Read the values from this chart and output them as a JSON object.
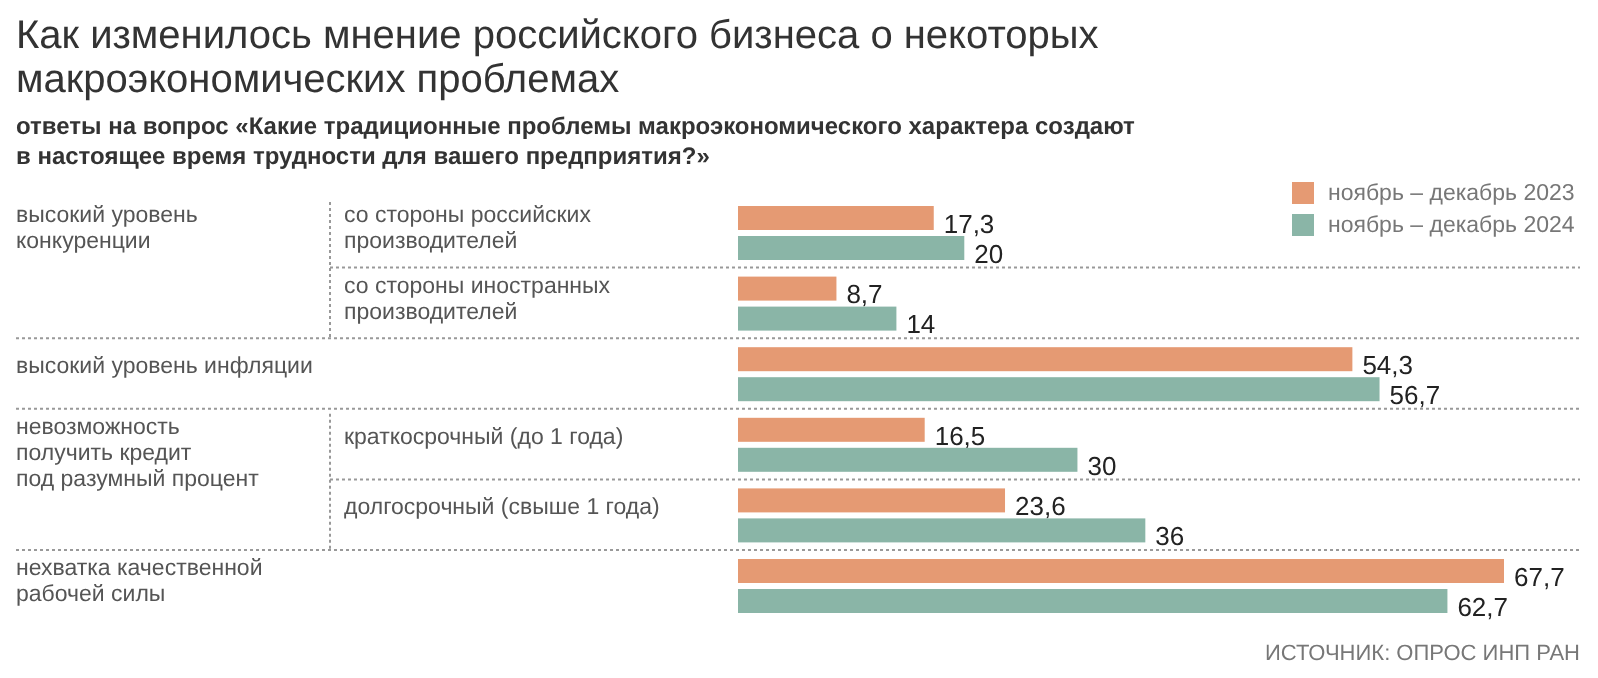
{
  "chart_data": {
    "type": "bar",
    "orientation": "horizontal",
    "title": "Как изменилось мнение российского бизнеса о некоторых\nмакроэкономических проблемах",
    "subtitle": "ответы на вопрос «Какие традиционные проблемы макроэкономического характера создают\nв настоящее время трудности для вашего предприятия?»",
    "categories": [
      "со стороны российских\nпроизводителей",
      "со стороны иностранных\nпроизводителей",
      null,
      "краткосрочный (до 1 года)",
      "долгосрочный (свыше 1 года)",
      null
    ],
    "series": [
      {
        "name": "ноябрь – декабрь 2023",
        "color": "#e59a73",
        "values": [
          17.3,
          8.7,
          54.3,
          16.5,
          23.6,
          67.7
        ],
        "value_labels": [
          "17,3",
          "8,7",
          "54,3",
          "16,5",
          "23,6",
          "67,7"
        ]
      },
      {
        "name": "ноябрь – декабрь 2024",
        "color": "#8ab5a7",
        "values": [
          20,
          14,
          56.7,
          30,
          36,
          62.7
        ],
        "value_labels": [
          "20",
          "14",
          "56,7",
          "30",
          "36",
          "62,7"
        ]
      }
    ],
    "annotations": [
      "высокий уровень\nконкуренции",
      "высокий уровень инфляции",
      "невозможность\nполучить кредит\nпод разумный процент",
      "нехватка качественной\nрабочей силы",
      "ИСТОЧНИК: ОПРОС ИНП РАН"
    ],
    "legend": "top right"
  }
}
